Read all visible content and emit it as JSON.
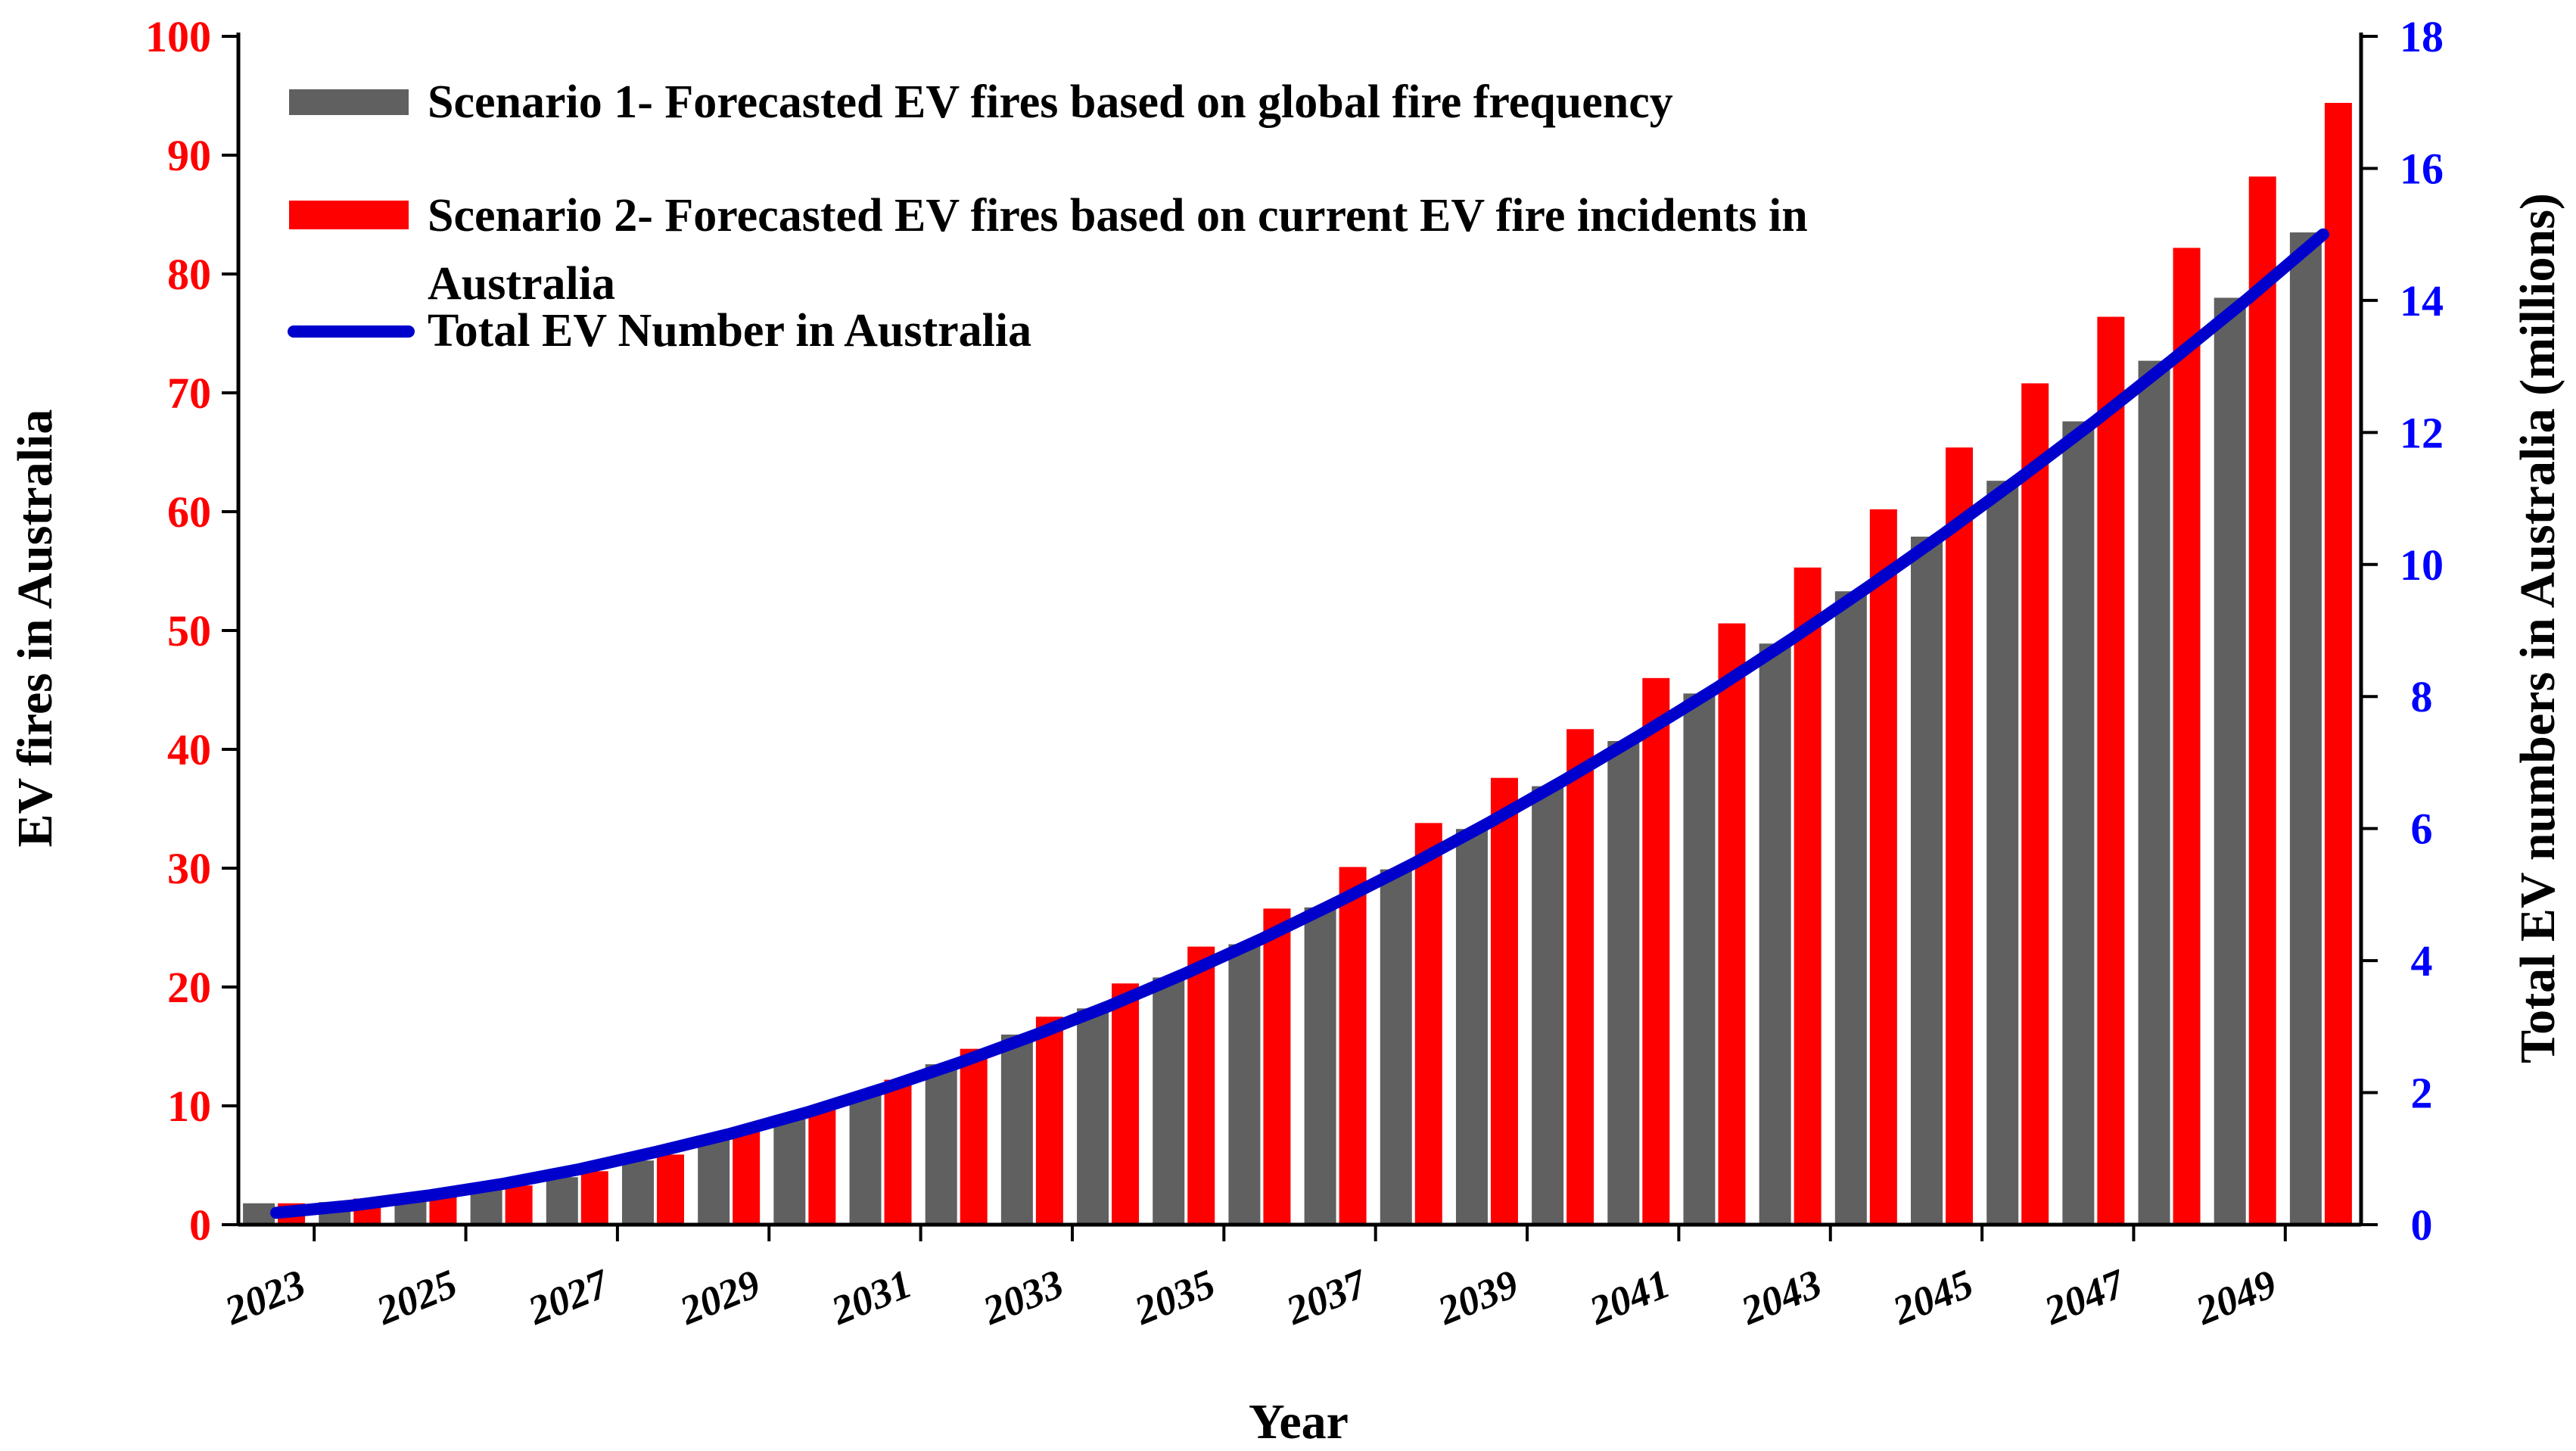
{
  "chart_data": {
    "type": "bar",
    "x_label": "Year",
    "y_left_label": "EV fires in Australia",
    "y_right_label": "Total EV numbers in Australia (millions)",
    "y_left_range": [
      0,
      100
    ],
    "y_left_ticks": [
      "0",
      "10",
      "20",
      "30",
      "40",
      "50",
      "60",
      "70",
      "80",
      "90",
      "100"
    ],
    "y_right_range": [
      0,
      18
    ],
    "y_right_ticks": [
      "0",
      "2",
      "4",
      "6",
      "8",
      "10",
      "12",
      "14",
      "16",
      "18"
    ],
    "categories": [
      "2023",
      "2024",
      "2025",
      "2026",
      "2027",
      "2028",
      "2029",
      "2030",
      "2031",
      "2032",
      "2033",
      "2034",
      "2035",
      "2036",
      "2037",
      "2038",
      "2039",
      "2040",
      "2041",
      "2042",
      "2043",
      "2044",
      "2045",
      "2046",
      "2047",
      "2048",
      "2049",
      "2050"
    ],
    "x_tick_labels": [
      "2023",
      "2025",
      "2027",
      "2029",
      "2031",
      "2033",
      "2035",
      "2037",
      "2039",
      "2041",
      "2043",
      "2045",
      "2047",
      "2049"
    ],
    "series": [
      {
        "name": "Scenario 1- Forecasted EV fires based on global fire frequency",
        "kind": "bar",
        "axis": "left",
        "color": "#606060",
        "values": [
          1.8,
          1.9,
          2.3,
          3.0,
          4.0,
          5.4,
          7.1,
          9.0,
          11.1,
          13.5,
          16.0,
          18.2,
          20.8,
          23.6,
          26.7,
          29.9,
          33.3,
          36.9,
          40.7,
          44.7,
          48.9,
          53.3,
          57.9,
          62.6,
          67.6,
          72.7,
          78.0,
          83.5
        ]
      },
      {
        "name": "Scenario 2- Forecasted EV fires based on current EV fire incidents in Australia",
        "kind": "bar",
        "axis": "left",
        "color": "#ff0000",
        "values": [
          1.8,
          2.2,
          2.6,
          3.3,
          4.5,
          5.9,
          7.8,
          9.8,
          12.2,
          14.8,
          17.5,
          20.3,
          23.4,
          26.6,
          30.1,
          33.8,
          37.6,
          41.7,
          46.0,
          50.6,
          55.3,
          60.2,
          65.4,
          70.8,
          76.4,
          82.2,
          88.2,
          94.4
        ]
      },
      {
        "name": "Total EV Number in Australia",
        "kind": "line",
        "axis": "right",
        "color": "#0000cc",
        "values": [
          0.18,
          0.29,
          0.44,
          0.62,
          0.84,
          1.1,
          1.38,
          1.7,
          2.06,
          2.45,
          2.87,
          3.32,
          3.81,
          4.33,
          4.89,
          5.47,
          6.09,
          6.74,
          7.42,
          8.13,
          8.88,
          9.66,
          10.47,
          11.31,
          12.18,
          13.09,
          14.02,
          15.0
        ]
      }
    ],
    "legend": "top-left",
    "grid": false
  }
}
